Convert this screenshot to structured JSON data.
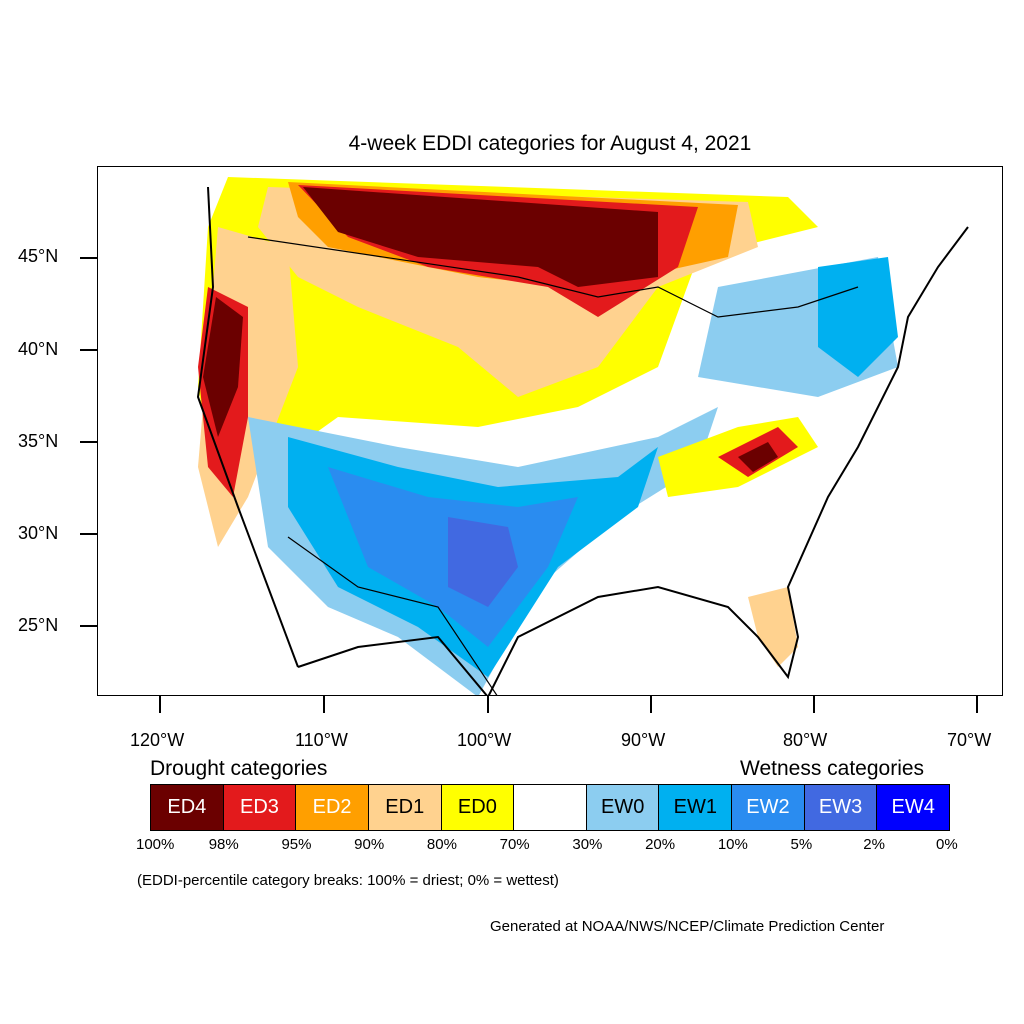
{
  "title": "4-week EDDI categories for August 4, 2021",
  "lat_labels": [
    "45°N",
    "40°N",
    "35°N",
    "30°N",
    "25°N"
  ],
  "lon_labels": [
    "120°W",
    "110°W",
    "100°W",
    "90°W",
    "80°W",
    "70°W"
  ],
  "legend": {
    "drought_heading": "Drought categories",
    "wetness_heading": "Wetness categories",
    "categories": [
      {
        "label": "ED4",
        "color": "#6b0000"
      },
      {
        "label": "ED3",
        "color": "#e31a1c"
      },
      {
        "label": "ED2",
        "color": "#ff9f00"
      },
      {
        "label": "ED1",
        "color": "#ffd28f"
      },
      {
        "label": "ED0",
        "color": "#ffff00"
      },
      {
        "label": "",
        "color": "#ffffff"
      },
      {
        "label": "EW0",
        "color": "#8ccdf0"
      },
      {
        "label": "EW1",
        "color": "#00b0f0"
      },
      {
        "label": "EW2",
        "color": "#2a8cf0"
      },
      {
        "label": "EW3",
        "color": "#4169e1"
      },
      {
        "label": "EW4",
        "color": "#0000ff"
      }
    ],
    "percent_breaks": [
      "100%",
      "98%",
      "95%",
      "90%",
      "80%",
      "70%",
      "30%",
      "20%",
      "10%",
      "5%",
      "2%",
      "0%"
    ]
  },
  "note": "(EDDI-percentile category breaks: 100% = driest; 0% = wettest)",
  "credit": "Generated at NOAA/NWS/NCEP/Climate Prediction Center"
}
